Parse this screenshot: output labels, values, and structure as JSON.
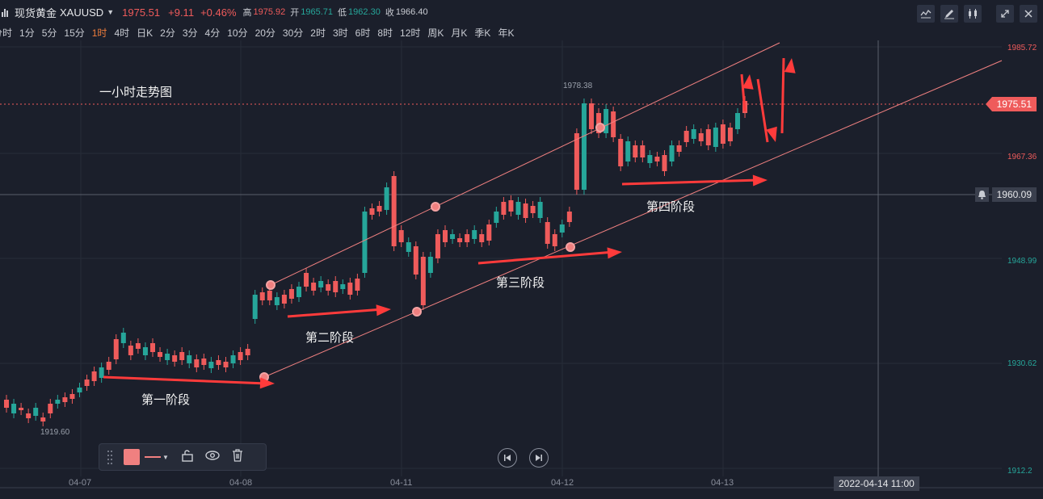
{
  "header": {
    "name": "现货黄金",
    "symbol": "XAUUSD",
    "price": "1975.51",
    "change": "+9.11",
    "change_pct": "+0.46%",
    "high_label": "高",
    "high": "1975.92",
    "open_label": "开",
    "open": "1965.71",
    "low_label": "低",
    "low": "1962.30",
    "close_label": "收",
    "close": "1966.40"
  },
  "timeframes": [
    "分时",
    "1分",
    "5分",
    "15分",
    "1时",
    "4时",
    "日K",
    "2分",
    "3分",
    "4分",
    "10分",
    "20分",
    "30分",
    "2时",
    "3时",
    "6时",
    "8时",
    "12时",
    "周K",
    "月K",
    "季K",
    "年K"
  ],
  "active_timeframe": "1时",
  "annotations": {
    "title": "一小时走势图",
    "stage1": "第一阶段",
    "stage2": "第二阶段",
    "stage3": "第三阶段",
    "stage4": "第四阶段",
    "peak": "1978.38",
    "trough": "1919.60"
  },
  "price_axis": [
    "1985.72",
    "1967.36",
    "1948.99",
    "1930.62",
    "1912.2"
  ],
  "current_price_tag": "1975.51",
  "crosshair_price_tag": "1960.09",
  "date_axis": [
    "04-07",
    "04-08",
    "04-11",
    "04-12",
    "04-13"
  ],
  "crosshair_date": "2022-04-14 11:00",
  "colors": {
    "up": "#ef5b5b",
    "down": "#26a69a",
    "background": "#1b1f2b",
    "annotation": "#ff3b3b",
    "channel": "#f08080"
  },
  "icons": [
    "chart-type-icon",
    "pencil-icon",
    "candle-icon",
    "fullscreen-icon",
    "close-icon",
    "drag-handle-icon",
    "lock-icon",
    "eye-icon",
    "trash-icon",
    "prev-icon",
    "next-icon",
    "bell-icon"
  ]
}
